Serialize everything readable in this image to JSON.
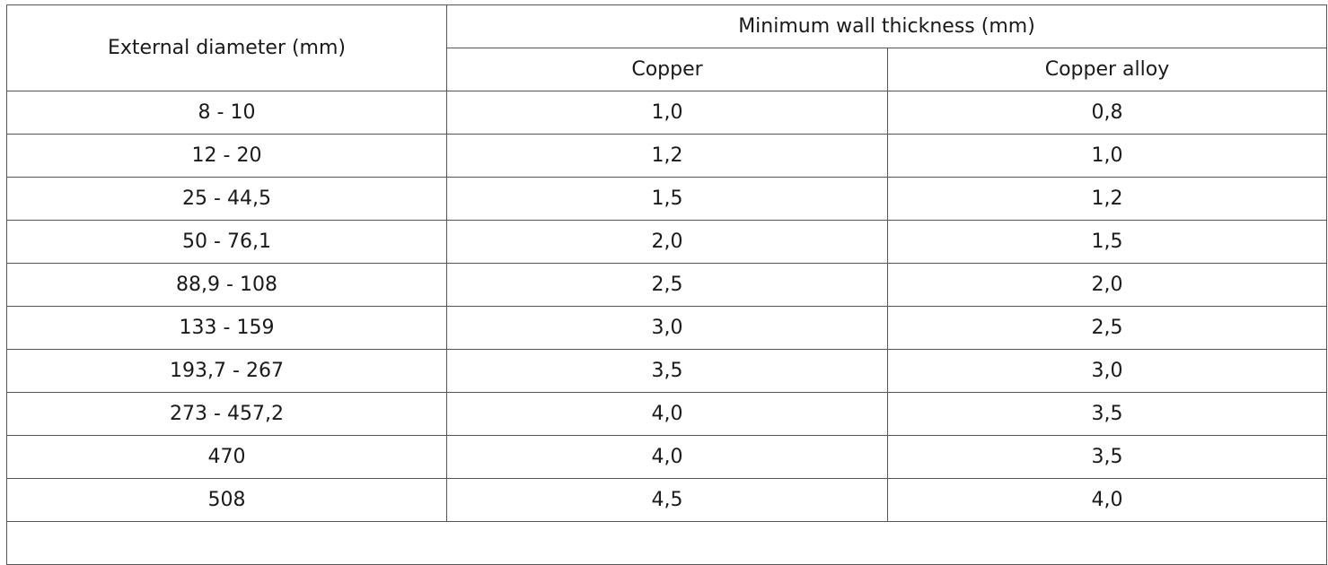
{
  "table": {
    "header": {
      "diameter_label": "External diameter (mm)",
      "group_label": "Minimum wall thickness (mm)",
      "copper_label": "Copper",
      "alloy_label": "Copper alloy"
    },
    "rows": [
      {
        "diameter": "8 - 10",
        "copper": "1,0",
        "alloy": "0,8"
      },
      {
        "diameter": "12 - 20",
        "copper": "1,2",
        "alloy": "1,0"
      },
      {
        "diameter": "25 - 44,5",
        "copper": "1,5",
        "alloy": "1,2"
      },
      {
        "diameter": "50 - 76,1",
        "copper": "2,0",
        "alloy": "1,5"
      },
      {
        "diameter": "88,9 - 108",
        "copper": "2,5",
        "alloy": "2,0"
      },
      {
        "diameter": "133 - 159",
        "copper": "3,0",
        "alloy": "2,5"
      },
      {
        "diameter": "193,7 - 267",
        "copper": "3,5",
        "alloy": "3,0"
      },
      {
        "diameter": "273 - 457,2",
        "copper": "4,0",
        "alloy": "3,5"
      },
      {
        "diameter": "470",
        "copper": "4,0",
        "alloy": "3,5"
      },
      {
        "diameter": "508",
        "copper": "4,5",
        "alloy": "4,0"
      }
    ]
  }
}
